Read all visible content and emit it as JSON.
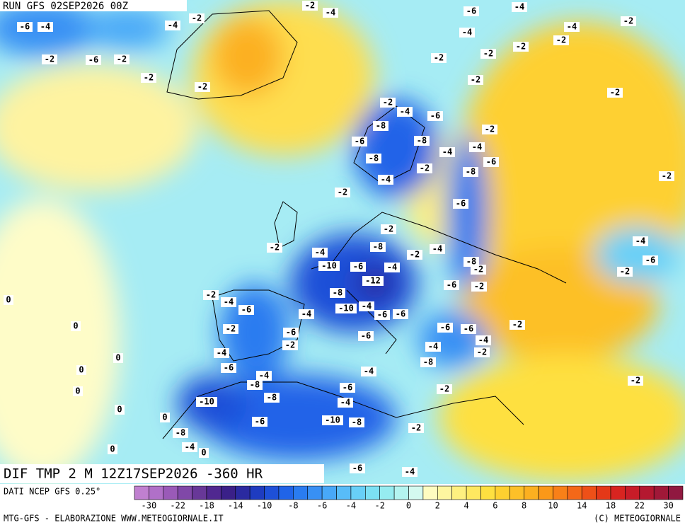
{
  "header": {
    "run": "RUN GFS 02SEP2026 00Z"
  },
  "map": {
    "title": "DIF TMP 2 M 12Z17SEP2026 -360 HR",
    "labels": [
      "-6",
      "-4",
      "-2",
      "-6",
      "-2",
      "-2",
      "-2",
      "-4",
      "-2",
      "-2",
      "-4",
      "-6",
      "-4",
      "-4",
      "-4",
      "-2",
      "-2",
      "-2",
      "-2",
      "-2",
      "-2",
      "-2",
      "-2",
      "-4",
      "-6",
      "-8",
      "-2",
      "-6",
      "-8",
      "-4",
      "-4",
      "-8",
      "-6",
      "-2",
      "-8",
      "-4",
      "-2",
      "-2",
      "-6",
      "-2",
      "-8",
      "-2",
      "-4",
      "-4",
      "-2",
      "-4",
      "-10",
      "-6",
      "-4",
      "-8",
      "-2",
      "-6",
      "-2",
      "-12",
      "-6",
      "-2",
      "-2",
      "-8",
      "-4",
      "-6",
      "-10",
      "-4",
      "-6",
      "-4",
      "-6",
      "0",
      "0",
      "-2",
      "-6",
      "-6",
      "-6",
      "-2",
      "-4",
      "-2",
      "-6",
      "-4",
      "-4",
      "-2",
      "0",
      "-6",
      "-4",
      "-8",
      "-4",
      "0",
      "0",
      "-8",
      "-2",
      "-6",
      "-2",
      "-8",
      "-10",
      "-4",
      "0",
      "-6",
      "-10",
      "-8",
      "-2",
      "0",
      "-8",
      "-4",
      "0",
      "0",
      "-6",
      "-4"
    ]
  },
  "scale": {
    "source": "DATI NCEP GFS 0.25°",
    "colors": [
      "#c080d0",
      "#b070c8",
      "#9a5ab8",
      "#8048a8",
      "#683898",
      "#502890",
      "#3a2088",
      "#2a2aa0",
      "#1e3cc0",
      "#1e50d8",
      "#2064e8",
      "#2a7cf0",
      "#3890f4",
      "#48a8f8",
      "#58bcf8",
      "#68d0f8",
      "#7ce0f4",
      "#96ecf0",
      "#b4f4f0",
      "#d4faf0",
      "#fefcc0",
      "#fef6a0",
      "#fef080",
      "#fee860",
      "#fee040",
      "#fed030",
      "#fdc028",
      "#fcb020",
      "#fb9818",
      "#f88018",
      "#f46818",
      "#ee5018",
      "#e43818",
      "#d82420",
      "#c81c28",
      "#b41830",
      "#a01838",
      "#901840"
    ],
    "labels": [
      "-30",
      "-22",
      "-18",
      "-14",
      "-10",
      "-8",
      "-6",
      "-4",
      "-2",
      "0",
      "2",
      "4",
      "6",
      "8",
      "10",
      "14",
      "18",
      "22",
      "30"
    ]
  },
  "footer": {
    "left": "MTG-GFS - ELABORAZIONE WWW.METEOGIORNALE.IT",
    "right": "(C) METEOGIORNALE"
  }
}
